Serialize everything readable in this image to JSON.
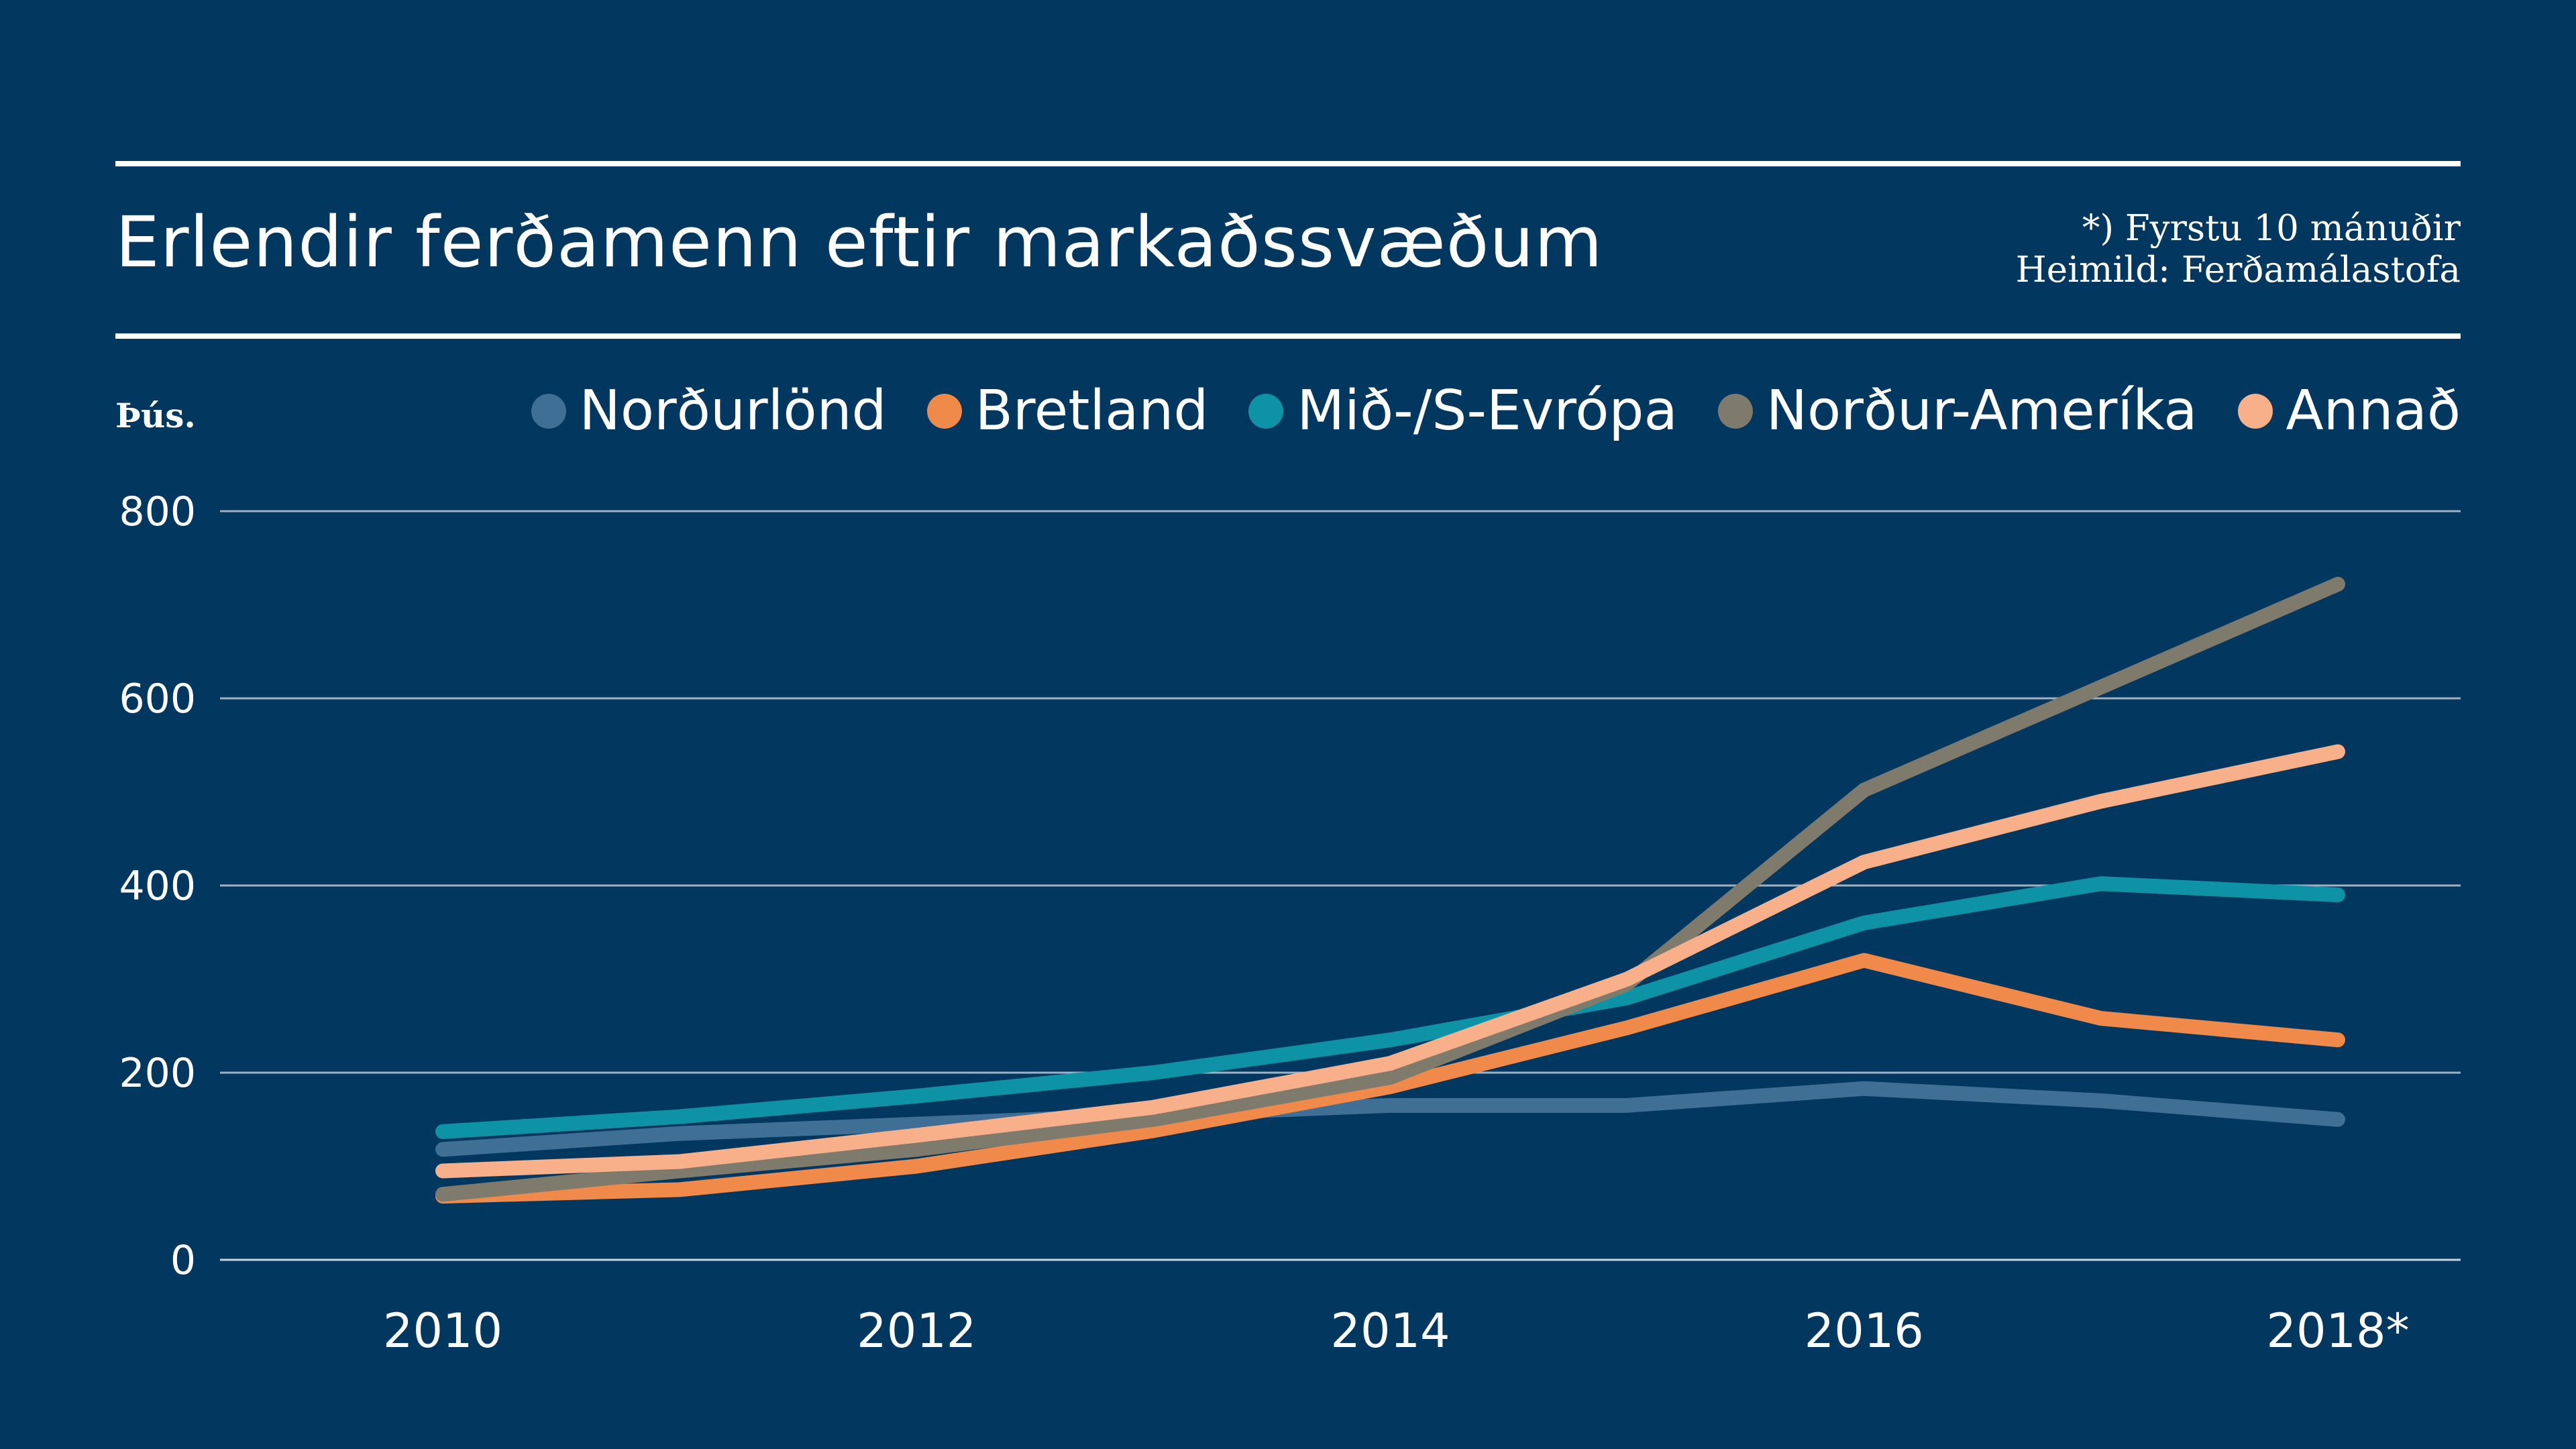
{
  "header": {
    "title": "Erlendir ferðamenn eftir markaðssvæðum",
    "note": "*) Fyrstu 10 mánuðir",
    "source": "Heimild: Ferðamálastofa"
  },
  "chart_data": {
    "type": "line",
    "unit_label": "Þús.",
    "x": [
      2010,
      2011,
      2012,
      2013,
      2014,
      2015,
      2016,
      2017,
      2018
    ],
    "x_tick_labels": [
      "2010",
      "2012",
      "2014",
      "2016",
      "2018*"
    ],
    "x_tick_values": [
      2010,
      2012,
      2014,
      2016,
      2018
    ],
    "y_ticks": [
      0,
      200,
      400,
      600,
      800
    ],
    "ylim": [
      0,
      800
    ],
    "grid": true,
    "legend_position": "top",
    "series": [
      {
        "name": "Norðurlönd",
        "color": "#3f6f94",
        "values": [
          118,
          135,
          145,
          155,
          165,
          165,
          183,
          170,
          150
        ]
      },
      {
        "name": "Bretland",
        "color": "#f08a4b",
        "values": [
          68,
          75,
          100,
          138,
          185,
          248,
          320,
          258,
          235
        ]
      },
      {
        "name": "Mið-/S-Evrópa",
        "color": "#0e93a6",
        "values": [
          137,
          153,
          175,
          200,
          235,
          280,
          360,
          402,
          390
        ]
      },
      {
        "name": "Norður-Ameríka",
        "color": "#7e7a6c",
        "values": [
          70,
          95,
          118,
          150,
          195,
          295,
          502,
          612,
          722
        ]
      },
      {
        "name": "Annað",
        "color": "#f7b08a",
        "values": [
          95,
          105,
          133,
          163,
          210,
          300,
          425,
          490,
          543
        ]
      }
    ]
  }
}
